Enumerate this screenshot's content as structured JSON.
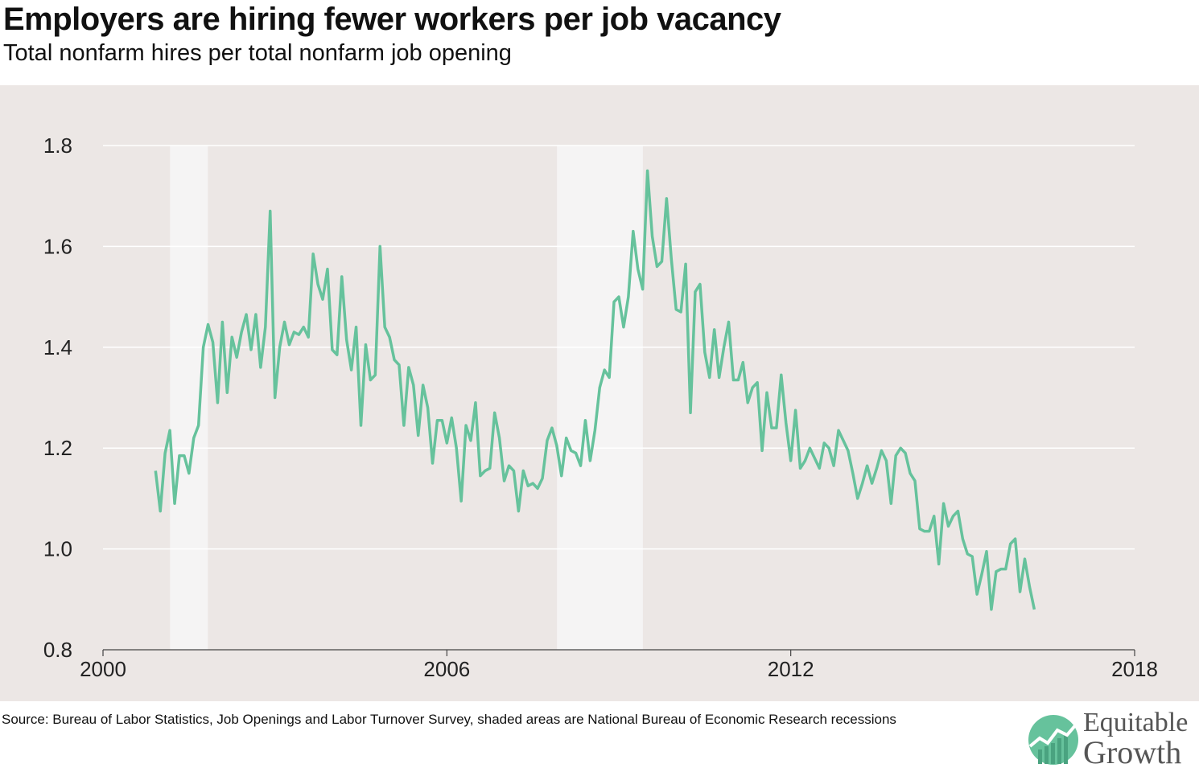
{
  "title": "Employers are hiring fewer workers per job vacancy",
  "subtitle": "Total nonfarm hires per total nonfarm job opening",
  "source": "Source: Bureau of Labor Statistics, Job Openings and Labor Turnover Survey, shaded areas are National Bureau of Economic Research recessions",
  "logo": {
    "line1": "Equitable",
    "line2": "Growth"
  },
  "colors": {
    "line": "#66c29c",
    "background": "#ece7e5",
    "recession": "#f5f4f4",
    "grid": "#ffffff"
  },
  "chart_data": {
    "type": "line",
    "title": "Employers are hiring fewer workers per job vacancy",
    "xlabel": "",
    "ylabel": "",
    "xlim": [
      2000,
      2018
    ],
    "ylim": [
      0.8,
      1.8
    ],
    "x_ticks": [
      "2000",
      "2006",
      "2012",
      "2018"
    ],
    "y_ticks": [
      "0.8",
      "1.0",
      "1.2",
      "1.4",
      "1.6",
      "1.8"
    ],
    "grid": true,
    "recessions": [
      [
        2001.17,
        2001.83
      ],
      [
        2007.92,
        2009.42
      ]
    ],
    "series": [
      {
        "start": "2000-12",
        "frequency": "monthly",
        "values": [
          1.155,
          1.075,
          1.19,
          1.235,
          1.09,
          1.185,
          1.185,
          1.15,
          1.22,
          1.245,
          1.4,
          1.445,
          1.41,
          1.29,
          1.45,
          1.31,
          1.42,
          1.38,
          1.43,
          1.465,
          1.395,
          1.465,
          1.36,
          1.44,
          1.67,
          1.3,
          1.4,
          1.45,
          1.405,
          1.43,
          1.425,
          1.44,
          1.42,
          1.585,
          1.525,
          1.495,
          1.555,
          1.395,
          1.385,
          1.54,
          1.415,
          1.355,
          1.44,
          1.245,
          1.405,
          1.335,
          1.345,
          1.6,
          1.44,
          1.42,
          1.375,
          1.365,
          1.245,
          1.36,
          1.325,
          1.225,
          1.325,
          1.28,
          1.17,
          1.255,
          1.255,
          1.21,
          1.26,
          1.2,
          1.095,
          1.245,
          1.215,
          1.29,
          1.145,
          1.155,
          1.16,
          1.27,
          1.22,
          1.135,
          1.165,
          1.155,
          1.075,
          1.155,
          1.125,
          1.13,
          1.12,
          1.14,
          1.215,
          1.24,
          1.205,
          1.145,
          1.22,
          1.195,
          1.19,
          1.165,
          1.255,
          1.175,
          1.235,
          1.32,
          1.355,
          1.34,
          1.49,
          1.5,
          1.44,
          1.5,
          1.63,
          1.555,
          1.515,
          1.75,
          1.62,
          1.56,
          1.57,
          1.695,
          1.575,
          1.475,
          1.47,
          1.565,
          1.27,
          1.51,
          1.525,
          1.39,
          1.34,
          1.435,
          1.34,
          1.4,
          1.45,
          1.335,
          1.335,
          1.37,
          1.29,
          1.32,
          1.33,
          1.195,
          1.31,
          1.24,
          1.24,
          1.345,
          1.25,
          1.175,
          1.275,
          1.16,
          1.175,
          1.2,
          1.18,
          1.16,
          1.21,
          1.2,
          1.165,
          1.235,
          1.215,
          1.195,
          1.15,
          1.1,
          1.13,
          1.165,
          1.13,
          1.16,
          1.195,
          1.175,
          1.09,
          1.185,
          1.2,
          1.19,
          1.15,
          1.135,
          1.04,
          1.035,
          1.035,
          1.065,
          0.97,
          1.09,
          1.045,
          1.065,
          1.075,
          1.02,
          0.99,
          0.985,
          0.91,
          0.95,
          0.995,
          0.88,
          0.955,
          0.96,
          0.96,
          1.01,
          1.02,
          0.915,
          0.98,
          0.925,
          0.88
        ]
      }
    ]
  }
}
